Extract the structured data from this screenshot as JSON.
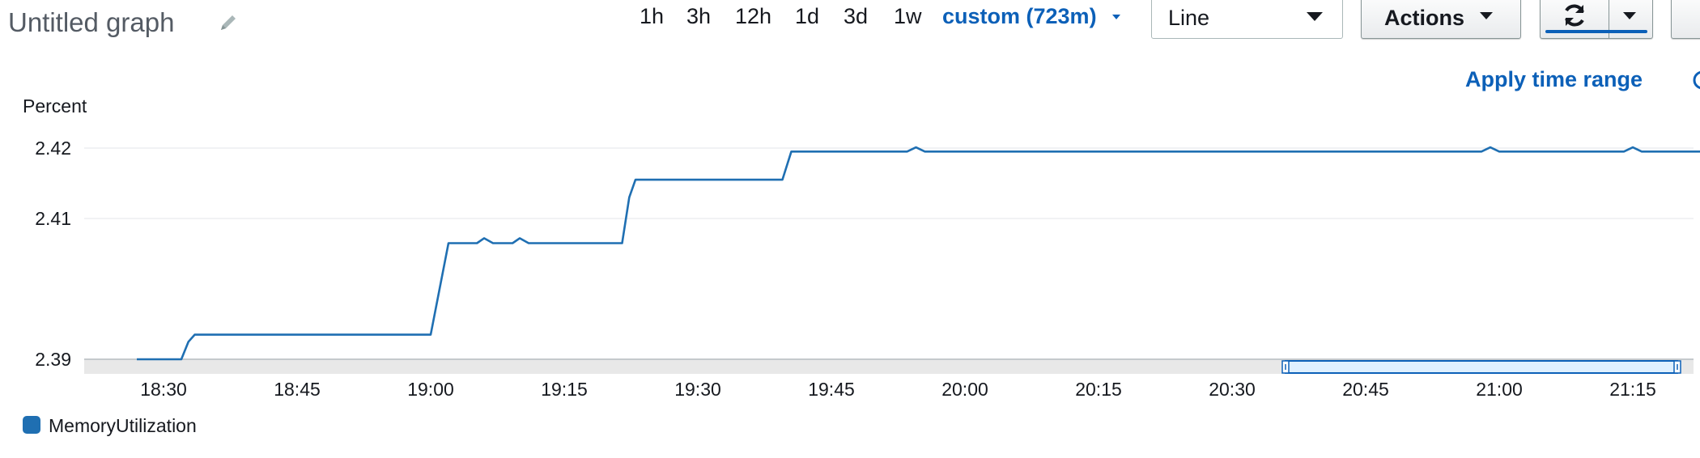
{
  "header": {
    "title": "Untitled graph",
    "edit_icon": "pencil-icon",
    "time_ranges": [
      "1h",
      "3h",
      "12h",
      "1d",
      "3d",
      "1w"
    ],
    "custom_range": "custom (723m)",
    "chart_type": "Line",
    "actions_label": "Actions",
    "refresh_icon": "refresh-icon",
    "apply_time_range": "Apply time range"
  },
  "colors": {
    "accent": "#0c60b8",
    "series": "#1f6fb2",
    "grid": "#e3e6e8",
    "range_band": "#e8e8e8",
    "selection_fill": "#dff0ff"
  },
  "chart_data": {
    "type": "line",
    "ylabel": "Percent",
    "xlabel": "",
    "ylim": [
      2.39,
      2.42
    ],
    "yticks": [
      2.39,
      2.41,
      2.42
    ],
    "xticks": [
      "18:30",
      "18:45",
      "19:00",
      "19:15",
      "19:30",
      "19:45",
      "20:00",
      "20:15",
      "20:30",
      "20:45",
      "21:00",
      "21:15"
    ],
    "x_start": "18:30",
    "minutes_per_tick": 15,
    "grid": true,
    "legend_position": "bottom-left",
    "selection_range": [
      "20:36",
      "21:20"
    ],
    "series": [
      {
        "name": "MemoryUtilization",
        "points": [
          [
            -3.0,
            2.39
          ],
          [
            2.0,
            2.39
          ],
          [
            2.8,
            2.3925
          ],
          [
            3.5,
            2.3935
          ],
          [
            30.0,
            2.3935
          ],
          [
            32.0,
            2.4065
          ],
          [
            35.2,
            2.4065
          ],
          [
            36.0,
            2.4072
          ],
          [
            37.0,
            2.4065
          ],
          [
            39.2,
            2.4065
          ],
          [
            40.0,
            2.4072
          ],
          [
            41.0,
            2.4065
          ],
          [
            51.5,
            2.4065
          ],
          [
            52.3,
            2.413
          ],
          [
            53.0,
            2.4155
          ],
          [
            69.5,
            2.4155
          ],
          [
            70.5,
            2.4195
          ],
          [
            83.5,
            2.4195
          ],
          [
            84.5,
            2.4201
          ],
          [
            85.5,
            2.4195
          ],
          [
            148.0,
            2.4195
          ],
          [
            149.0,
            2.4201
          ],
          [
            150.0,
            2.4195
          ],
          [
            164.0,
            2.4195
          ],
          [
            165.0,
            2.4201
          ],
          [
            166.0,
            2.4195
          ],
          [
            173.5,
            2.4195
          ]
        ]
      }
    ]
  }
}
